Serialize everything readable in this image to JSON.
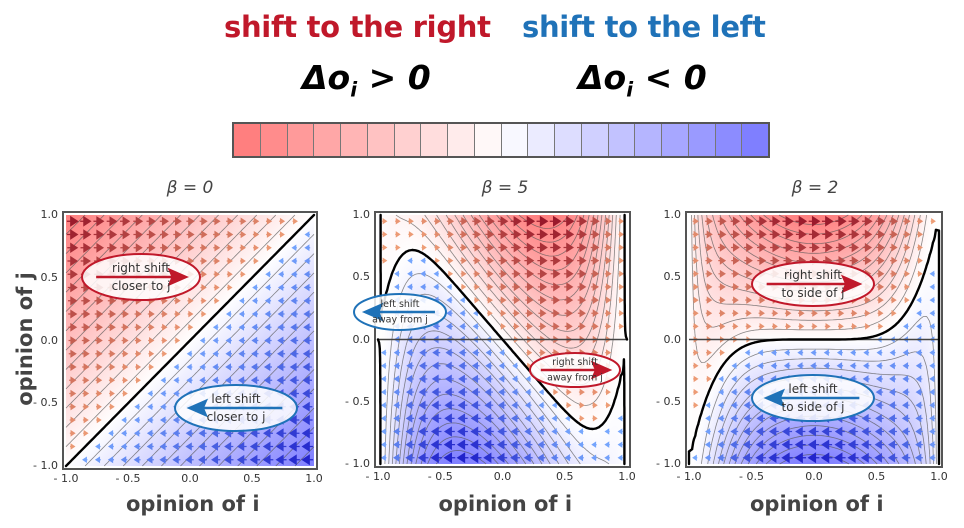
{
  "header": {
    "right_label": "shift to the right",
    "left_label": "shift to the left",
    "right_color": "#c0182a",
    "left_color": "#1f72b8",
    "right_condition": {
      "symbol": "Δo",
      "sub": "i",
      "rel": " > 0"
    },
    "left_condition": {
      "symbol": "Δo",
      "sub": "i",
      "rel": " < 0"
    }
  },
  "colorbar": {
    "cells": 20,
    "positive_color": "#ff7f7f",
    "negative_color": "#7f7fff"
  },
  "axes": {
    "x_label": "opinion of i",
    "y_label": "opinion of j",
    "ticks": [
      "- 1.0",
      "- 0.5",
      "0.0",
      "0.5",
      "1.0"
    ]
  },
  "chart_data": [
    {
      "type": "heatmap",
      "title": "β = 0",
      "beta": 0,
      "xlabel": "opinion of i",
      "ylabel": "opinion of j",
      "xlim": [
        -1,
        1
      ],
      "ylim": [
        -1,
        1
      ],
      "nullcline": "j = i",
      "annotations": [
        {
          "line1": "right shift",
          "line2": "closer to j",
          "direction": "right",
          "color": "#c0182a"
        },
        {
          "line1": "left shift",
          "line2": "closer to j",
          "direction": "left",
          "color": "#1f72b8"
        }
      ]
    },
    {
      "type": "heatmap",
      "title": "β = 5",
      "beta": 5,
      "xlabel": "opinion of i",
      "ylabel": "opinion of j",
      "xlim": [
        -1,
        1
      ],
      "ylim": [
        -1,
        1
      ],
      "nullcline": "S-curve: max j≈0.72 at i≈-0.78, through (0,0), min j≈-0.72 at i≈0.8; vertical at i≈±0.98",
      "annotations": [
        {
          "line1": "left shift",
          "line2": "away from j",
          "direction": "left",
          "color": "#1f72b8"
        },
        {
          "line1": "right shift",
          "line2": "away from j",
          "direction": "right",
          "color": "#c0182a"
        }
      ]
    },
    {
      "type": "heatmap",
      "title": "β = 2",
      "beta": 2,
      "xlabel": "opinion of i",
      "ylabel": "opinion of j",
      "xlim": [
        -1,
        1
      ],
      "ylim": [
        -1,
        1
      ],
      "nullcline": "flattened cubic through (-1,-1), (0,0), (1,1)",
      "annotations": [
        {
          "line1": "right shift",
          "line2": "to side of j",
          "direction": "right",
          "color": "#c0182a"
        },
        {
          "line1": "left shift",
          "line2": "to side of j",
          "direction": "left",
          "color": "#1f72b8"
        }
      ]
    }
  ]
}
